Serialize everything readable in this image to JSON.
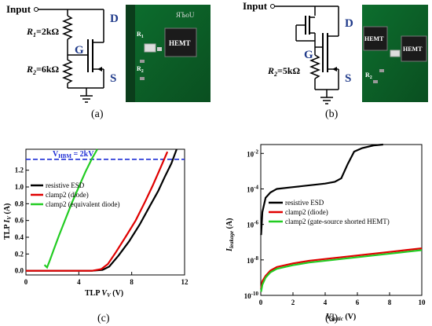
{
  "panel_a": {
    "label": "(a)",
    "input_label": "Input",
    "r1_label": "R",
    "r1_sub": "1",
    "r1_value": "=2kΩ",
    "r2_label": "R",
    "r2_sub": "2",
    "r2_value": "=6kΩ",
    "node_d": "D",
    "node_g": "G",
    "node_s": "S",
    "photo": {
      "hemt": "HEMT",
      "r1": "R",
      "r1_sub": "1",
      "r2": "R",
      "r2_sub": "2",
      "mirror_text": "ЯЪоU"
    }
  },
  "panel_b": {
    "label": "(b)",
    "input_label": "Input",
    "r2_label": "R",
    "r2_sub": "2",
    "r2_value": "=5kΩ",
    "node_d": "D",
    "node_g": "G",
    "node_s": "S",
    "photo": {
      "hemt_left": "HEMT",
      "hemt_right": "HEMT",
      "r2": "R",
      "r2_sub": "2"
    }
  },
  "panel_c": {
    "label": "(c)"
  },
  "panel_d": {
    "label": "(d)"
  },
  "chart_data": [
    {
      "type": "line",
      "panel": "(c)",
      "xlabel": "TLP V_V (V)",
      "ylabel": "TLP I_V (A)",
      "xlim": [
        0,
        12
      ],
      "ylim": [
        -0.05,
        1.45
      ],
      "x_ticks": [
        0,
        4,
        8,
        12
      ],
      "y_ticks": [
        0.0,
        0.2,
        0.4,
        0.6,
        0.8,
        1.0,
        1.2
      ],
      "y_tick_labels": [
        "0.0",
        "0.2",
        "0.4",
        "0.6",
        "0.8",
        "1.0",
        "1.2"
      ],
      "annotation": {
        "text": "V_HBM = 2kV",
        "y": 1.33,
        "style": "dashed",
        "color": "#1f2fd6"
      },
      "legend_position": "left",
      "series": [
        {
          "name": "resistive ESD",
          "color": "#000000",
          "x": [
            0,
            5.0,
            5.8,
            6.3,
            7.0,
            7.8,
            8.6,
            9.4,
            10.0,
            10.5,
            11.0,
            11.4
          ],
          "y": [
            0,
            0,
            0.01,
            0.05,
            0.18,
            0.35,
            0.55,
            0.78,
            0.95,
            1.12,
            1.28,
            1.45
          ]
        },
        {
          "name": "clamp2 (diode)",
          "color": "#e00000",
          "x": [
            0,
            5.0,
            5.7,
            6.2,
            6.8,
            7.6,
            8.3,
            9.0,
            9.6,
            10.1,
            10.7
          ],
          "y": [
            0,
            0,
            0.02,
            0.08,
            0.22,
            0.42,
            0.6,
            0.82,
            1.02,
            1.2,
            1.42
          ]
        },
        {
          "name": "clamp2 (equivalent diode)",
          "color": "#22cc22",
          "x": [
            1.4,
            1.6,
            1.8,
            2.1,
            2.5,
            3.0,
            3.5,
            4.0,
            4.5,
            5.0,
            5.4
          ],
          "y": [
            0.07,
            0.04,
            0.12,
            0.25,
            0.42,
            0.62,
            0.82,
            1.0,
            1.18,
            1.34,
            1.45
          ]
        }
      ]
    },
    {
      "type": "line",
      "panel": "(d)",
      "xlabel": "V_static (V)",
      "ylabel": "I_leakage (A)",
      "x_ticks": [
        0,
        2,
        4,
        6,
        8,
        10
      ],
      "xlim": [
        0,
        10
      ],
      "y_scale": "log",
      "ylim_exp": [
        -10,
        -1.5
      ],
      "y_tick_labels": [
        "10^-10",
        "10^-8",
        "10^-6",
        "10^-4",
        "10^-2"
      ],
      "y_tick_exponents": [
        -10,
        -8,
        -6,
        -4,
        -2
      ],
      "legend_position": "center",
      "series": [
        {
          "name": "resistive ESD",
          "color": "#000000",
          "x": [
            0.02,
            0.1,
            0.3,
            0.6,
            1.0,
            2.0,
            3.0,
            4.0,
            4.6,
            5.0,
            5.4,
            5.8,
            6.3,
            7.0,
            7.6
          ],
          "y_exp": [
            -6.6,
            -5.3,
            -4.5,
            -4.2,
            -4.0,
            -3.9,
            -3.8,
            -3.7,
            -3.6,
            -3.4,
            -2.6,
            -1.9,
            -1.7,
            -1.55,
            -1.5
          ]
        },
        {
          "name": "clamp2 (diode)",
          "color": "#e00000",
          "x": [
            0.02,
            0.1,
            0.3,
            0.6,
            1.0,
            2.0,
            3.0,
            4.0,
            5.0,
            6.0,
            7.0,
            8.0,
            9.0,
            10.0
          ],
          "y_exp": [
            -9.6,
            -9.2,
            -8.9,
            -8.6,
            -8.4,
            -8.2,
            -8.05,
            -7.95,
            -7.85,
            -7.75,
            -7.65,
            -7.55,
            -7.45,
            -7.35
          ]
        },
        {
          "name": "clamp2 (gate-source shorted HEMT)",
          "color": "#22cc22",
          "x": [
            0.02,
            0.1,
            0.3,
            0.6,
            1.0,
            2.0,
            3.0,
            4.0,
            5.0,
            6.0,
            7.0,
            8.0,
            9.0,
            10.0
          ],
          "y_exp": [
            -9.8,
            -9.4,
            -9.0,
            -8.7,
            -8.5,
            -8.3,
            -8.15,
            -8.05,
            -7.95,
            -7.85,
            -7.75,
            -7.65,
            -7.55,
            -7.45
          ]
        }
      ]
    }
  ]
}
